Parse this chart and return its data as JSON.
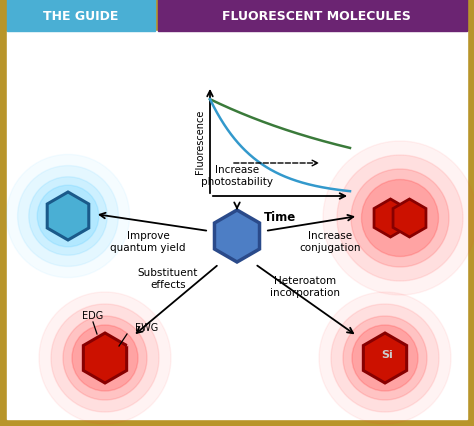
{
  "title_left": "THE GUIDE",
  "title_right": "FLUORESCENT MOLECULES",
  "title_left_bg": "#4AAFD4",
  "title_right_bg": "#6B2472",
  "header_bg": "#B8952A",
  "main_bg": "#FFFFFF",
  "labels": {
    "increase_photostability": "Increase\nphotostability",
    "improve_quantum_yield": "Improve\nquantum yield",
    "substituent_effects": "Substituent\neffects",
    "heteroatom_incorporation": "Heteroatom\nincorporation",
    "increase_conjugation": "Increase\nconjugation",
    "edg": "EDG",
    "ewg": "EWG",
    "si": "Si",
    "fluorescence": "Fluorescence",
    "time": "Time"
  }
}
